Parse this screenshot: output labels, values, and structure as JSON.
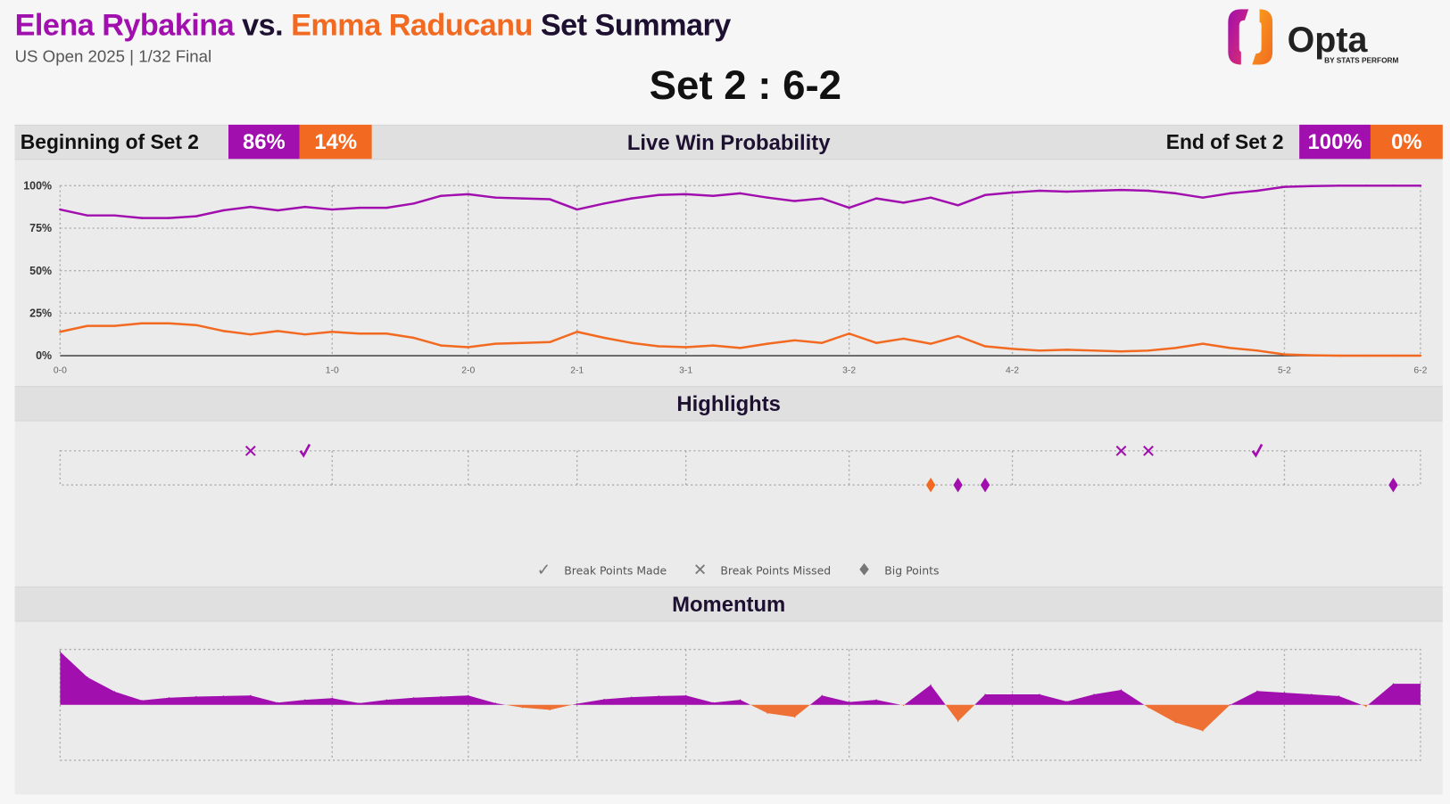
{
  "header": {
    "player1": "Elena Rybakina",
    "vs": "vs.",
    "player2": "Emma Raducanu",
    "title_suffix": "Set Summary",
    "subtitle": "US Open 2025 | 1/32 Final",
    "set_score": "Set 2 : 6-2",
    "logo_text": "Opta",
    "logo_sub": "BY STATS PERFORM"
  },
  "colors": {
    "player1": "#a10fae",
    "player2": "#f26a21",
    "text": "#1e1030"
  },
  "win_prob_bar": {
    "title": "Live Win Probability",
    "begin_label": "Beginning of Set 2",
    "begin_p1": "86%",
    "begin_p2": "14%",
    "end_label": "End of Set 2",
    "end_p1": "100%",
    "end_p2": "0%"
  },
  "highlights": {
    "title": "Highlights"
  },
  "momentum": {
    "title": "Momentum"
  },
  "legend": [
    {
      "icon": "check-icon",
      "label": "Break Points Made"
    },
    {
      "icon": "cross-icon",
      "label": "Break Points Missed"
    },
    {
      "icon": "diamond-icon",
      "label": "Big Points"
    }
  ],
  "chart_data": [
    {
      "type": "line",
      "title": "Live Win Probability",
      "x_ticks": [
        {
          "point": 0,
          "label": "0-0"
        },
        {
          "point": 10,
          "label": "1-0"
        },
        {
          "point": 15,
          "label": "2-0"
        },
        {
          "point": 19,
          "label": "2-1"
        },
        {
          "point": 23,
          "label": "3-1"
        },
        {
          "point": 29,
          "label": "3-2"
        },
        {
          "point": 35,
          "label": "4-2"
        },
        {
          "point": 45,
          "label": "5-2"
        },
        {
          "point": 50,
          "label": "6-2"
        }
      ],
      "y_ticks": [
        "0%",
        "25%",
        "50%",
        "75%",
        "100%"
      ],
      "ylim": [
        0,
        100
      ],
      "grid": true,
      "series": [
        {
          "name": "Elena Rybakina",
          "color": "#a10fae",
          "values": [
            86,
            82.5,
            82.5,
            81,
            81,
            82,
            85.5,
            87.5,
            85.5,
            87.5,
            86,
            87,
            87,
            89.5,
            94,
            95,
            93,
            92.5,
            92,
            86,
            89.5,
            92.5,
            94.5,
            95,
            94,
            95.5,
            93,
            91,
            92.5,
            87,
            92.5,
            90,
            93,
            88.5,
            94.5,
            96,
            97,
            96.5,
            97,
            97.5,
            97,
            95.5,
            93,
            95.5,
            97,
            99.3,
            99.8,
            100,
            100,
            100,
            100
          ]
        },
        {
          "name": "Emma Raducanu",
          "color": "#f26a21",
          "values": [
            14,
            17.5,
            17.5,
            19,
            19,
            18,
            14.5,
            12.5,
            14.5,
            12.5,
            14,
            13,
            13,
            10.5,
            6,
            5,
            7,
            7.5,
            8,
            14,
            10.5,
            7.5,
            5.5,
            5,
            6,
            4.5,
            7,
            9,
            7.5,
            13,
            7.5,
            10,
            7,
            11.5,
            5.5,
            4,
            3,
            3.5,
            3,
            2.5,
            3,
            4.5,
            7,
            4.5,
            3,
            0.7,
            0.2,
            0,
            0,
            0,
            0
          ]
        }
      ]
    },
    {
      "type": "scatter",
      "title": "Highlights",
      "markers": [
        {
          "point": 7,
          "row": 1,
          "kind": "break-point-missed",
          "player": "Elena Rybakina"
        },
        {
          "point": 9,
          "row": 1,
          "kind": "break-point-made",
          "player": "Elena Rybakina"
        },
        {
          "point": 39,
          "row": 1,
          "kind": "break-point-missed",
          "player": "Elena Rybakina"
        },
        {
          "point": 40,
          "row": 1,
          "kind": "break-point-missed",
          "player": "Elena Rybakina"
        },
        {
          "point": 44,
          "row": 1,
          "kind": "break-point-made",
          "player": "Elena Rybakina"
        },
        {
          "point": 32,
          "row": 2,
          "kind": "big-point",
          "player": "Emma Raducanu"
        },
        {
          "point": 33,
          "row": 2,
          "kind": "big-point",
          "player": "Elena Rybakina"
        },
        {
          "point": 34,
          "row": 2,
          "kind": "big-point",
          "player": "Elena Rybakina"
        },
        {
          "point": 49,
          "row": 2,
          "kind": "big-point",
          "player": "Elena Rybakina"
        }
      ]
    },
    {
      "type": "area",
      "title": "Momentum",
      "ylim": [
        -1,
        1
      ],
      "values": [
        0.96,
        0.5,
        0.24,
        0.08,
        0.13,
        0.15,
        0.16,
        0.17,
        0.04,
        0.09,
        0.12,
        0.03,
        0.09,
        0.13,
        0.15,
        0.17,
        0.03,
        -0.05,
        -0.09,
        0.02,
        0.1,
        0.14,
        0.16,
        0.17,
        0.04,
        0.09,
        -0.15,
        -0.22,
        0.17,
        0.05,
        0.09,
        -0.01,
        0.36,
        -0.3,
        0.19,
        0.19,
        0.19,
        0.06,
        0.19,
        0.27,
        -0.05,
        -0.32,
        -0.47,
        0,
        0.25,
        0.22,
        0.19,
        0.16,
        -0.03,
        0.38,
        0.38
      ]
    }
  ]
}
